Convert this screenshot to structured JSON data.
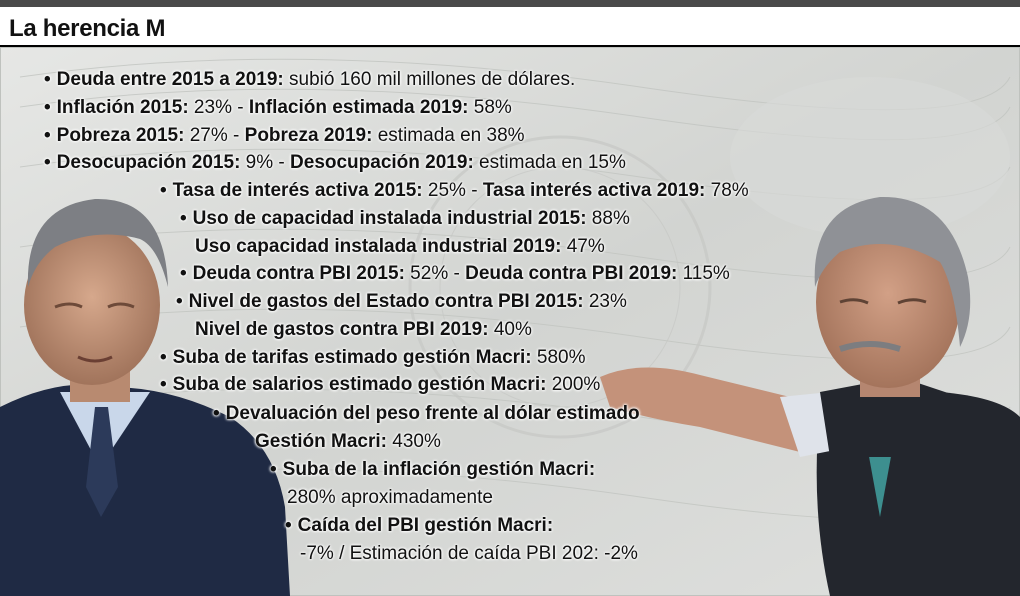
{
  "title": "La herencia M",
  "colors": {
    "top_bar": "#4a4a4a",
    "text": "#111111",
    "banknote": "#cfd2cf",
    "suit": "#1f2a44"
  },
  "items": [
    {
      "bullet": "•",
      "b1": "Deuda entre 2015 a 2019:",
      "t1": " subió 160 mil millones de dólares.",
      "b2": "",
      "t2": ""
    },
    {
      "bullet": "•",
      "b1": "Inflación 2015:",
      "t1": " 23% - ",
      "b2": "Inflación estimada 2019:",
      "t2": " 58%"
    },
    {
      "bullet": "•",
      "b1": "Pobreza 2015:",
      "t1": " 27% - ",
      "b2": "Pobreza 2019:",
      "t2": " estimada en 38%"
    },
    {
      "bullet": "•",
      "b1": "Desocupación 2015:",
      "t1": " 9% - ",
      "b2": "Desocupación 2019:",
      "t2": " estimada en 15%"
    },
    {
      "bullet": "•",
      "b1": "Tasa de interés activa 2015:",
      "t1": " 25% - ",
      "b2": "Tasa interés activa 2019:",
      "t2": " 78%"
    },
    {
      "bullet": "•",
      "b1": "Uso de capacidad instalada industrial 2015:",
      "t1": " 88%",
      "b2": "",
      "t2": ""
    },
    {
      "bullet": "",
      "b1": "Uso capacidad instalada industrial 2019:",
      "t1": " 47%",
      "b2": "",
      "t2": ""
    },
    {
      "bullet": "•",
      "b1": "Deuda contra PBI 2015:",
      "t1": " 52% - ",
      "b2": "Deuda contra PBI 2019:",
      "t2": " 115%"
    },
    {
      "bullet": "•",
      "b1": "Nivel de gastos del Estado contra PBI 2015:",
      "t1": " 23%",
      "b2": "",
      "t2": ""
    },
    {
      "bullet": "",
      "b1": "Nivel de gastos contra PBI 2019:",
      "t1": " 40%",
      "b2": "",
      "t2": ""
    },
    {
      "bullet": "•",
      "b1": "Suba de tarifas estimado gestión Macri:",
      "t1": " 580%",
      "b2": "",
      "t2": ""
    },
    {
      "bullet": "•",
      "b1": "Suba de salarios estimado gestión Macri:",
      "t1": " 200%",
      "b2": "",
      "t2": ""
    },
    {
      "bullet": "•",
      "b1": "Devaluación del peso frente al dólar estimado",
      "t1": "",
      "b2": "",
      "t2": ""
    },
    {
      "bullet": "",
      "b1": "Gestión Macri:",
      "t1": " 430%",
      "b2": "",
      "t2": ""
    },
    {
      "bullet": "•",
      "b1": "Suba de la inflación gestión Macri:",
      "t1": "",
      "b2": "",
      "t2": ""
    },
    {
      "bullet": "",
      "b1": "",
      "t1": "280% aproximadamente",
      "b2": "",
      "t2": ""
    },
    {
      "bullet": "•",
      "b1": "Caída del PBI gestión Macri:",
      "t1": "",
      "b2": "",
      "t2": ""
    },
    {
      "bullet": "",
      "b1": "",
      "t1": "-7% / Estimación de caída PBI 202: -2%",
      "b2": "",
      "t2": ""
    }
  ]
}
